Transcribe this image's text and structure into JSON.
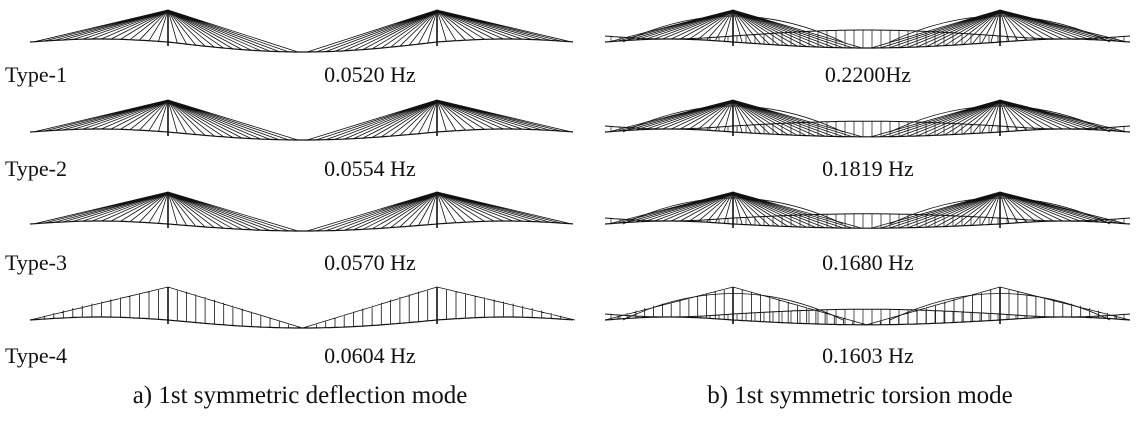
{
  "panels": [
    {
      "caption": "a) 1st symmetric deflection mode",
      "rows": [
        {
          "label": "Type-1",
          "frequency": "0.0520 Hz"
        },
        {
          "label": "Type-2",
          "frequency": "0.0554 Hz"
        },
        {
          "label": "Type-3",
          "frequency": "0.0570 Hz"
        },
        {
          "label": "Type-4",
          "frequency": "0.0604 Hz"
        }
      ]
    },
    {
      "caption": "b) 1st symmetric torsion mode",
      "rows": [
        {
          "frequency": "0.2200Hz"
        },
        {
          "frequency": "0.1819 Hz"
        },
        {
          "frequency": "0.1680 Hz"
        },
        {
          "frequency": "0.1603 Hz"
        }
      ]
    }
  ]
}
